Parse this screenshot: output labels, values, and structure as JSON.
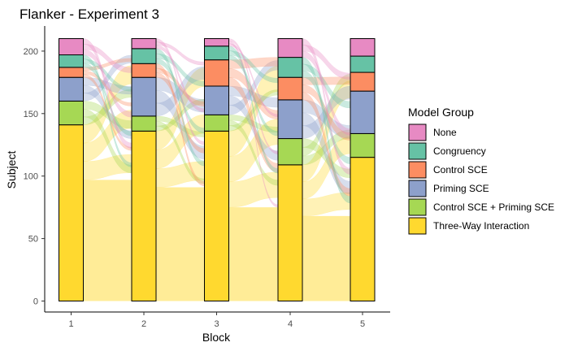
{
  "chart_data": {
    "type": "alluvial",
    "title": "Flanker - Experiment 3",
    "xlabel": "Block",
    "ylabel": "Subject",
    "categories": [
      "1",
      "2",
      "3",
      "4",
      "5"
    ],
    "ylim": [
      0,
      210
    ],
    "yticks": [
      0,
      50,
      100,
      150,
      200
    ],
    "legend_title": "Model Group",
    "legend_position": "right",
    "grid": false,
    "series": [
      {
        "name": "None",
        "color": "#E78AC3",
        "values": [
          13,
          8,
          6,
          15,
          14
        ]
      },
      {
        "name": "Congruency",
        "color": "#66C2A5",
        "values": [
          10,
          12,
          11,
          16,
          13
        ]
      },
      {
        "name": "Control SCE",
        "color": "#FC8D62",
        "values": [
          8,
          11,
          21,
          18,
          15
        ]
      },
      {
        "name": "Priming SCE",
        "color": "#8DA0CB",
        "values": [
          19,
          31,
          23,
          31,
          34
        ]
      },
      {
        "name": "Control SCE + Priming SCE",
        "color": "#A6D854",
        "values": [
          19,
          12,
          13,
          21,
          19
        ]
      },
      {
        "name": "Three-Way Interaction",
        "color": "#FFD92F",
        "values": [
          141,
          136,
          136,
          109,
          115
        ]
      }
    ],
    "stable_flows": [
      97,
      91,
      75,
      68
    ]
  }
}
